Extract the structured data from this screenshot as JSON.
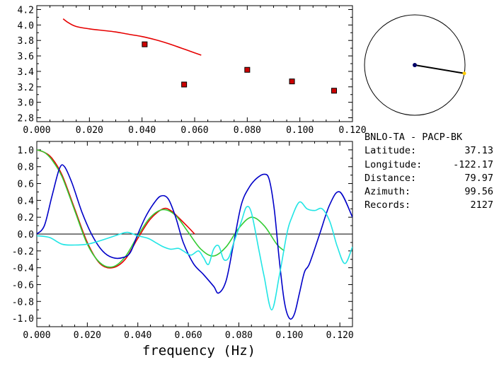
{
  "station_header": "BNLO-TA - PACP-BK",
  "station_info": [
    {
      "label": "Latitude:",
      "value": "37.13"
    },
    {
      "label": "Longitude:",
      "value": "-122.17"
    },
    {
      "label": "Distance:",
      "value": "79.97"
    },
    {
      "label": "Azimuth:",
      "value": "99.56"
    },
    {
      "label": "Records:",
      "value": "2127"
    }
  ],
  "azimuth_deg": 99.56,
  "colors": {
    "red": "#e60000",
    "blue": "#0000c8",
    "green": "#33cc33",
    "cyan": "#22e5e5",
    "marker": "#cc0000",
    "station": "#000066",
    "azimuth_end": "#ffcc00"
  },
  "chart_data": [
    {
      "type": "scatter",
      "title": "",
      "xlabel": "",
      "ylabel": "",
      "xlim": [
        0.0,
        0.12
      ],
      "ylim": [
        2.75,
        4.25
      ],
      "xticks": [
        "0.000",
        "0.020",
        "0.040",
        "0.060",
        "0.080",
        "0.100",
        "0.120"
      ],
      "yticks": [
        "2.8",
        "3.0",
        "3.2",
        "3.4",
        "3.6",
        "3.8",
        "4.0",
        "4.2"
      ],
      "series": [
        {
          "type": "line",
          "color": "red",
          "x": [
            0.01,
            0.012,
            0.015,
            0.02,
            0.025,
            0.03,
            0.035,
            0.04,
            0.045,
            0.05,
            0.055,
            0.06,
            0.0625
          ],
          "y": [
            4.08,
            4.03,
            3.98,
            3.95,
            3.93,
            3.91,
            3.88,
            3.85,
            3.81,
            3.76,
            3.7,
            3.64,
            3.61
          ]
        },
        {
          "type": "points",
          "color": "marker",
          "x": [
            0.041,
            0.056,
            0.08,
            0.097,
            0.113
          ],
          "y": [
            3.75,
            3.23,
            3.42,
            3.27,
            3.15
          ]
        }
      ]
    },
    {
      "type": "line",
      "title": "",
      "xlabel": "frequency (Hz)",
      "ylabel": "",
      "xlim": [
        0.0,
        0.125
      ],
      "ylim": [
        -1.1,
        1.1
      ],
      "xticks": [
        "0.000",
        "0.020",
        "0.040",
        "0.060",
        "0.080",
        "0.100",
        "0.120"
      ],
      "yticks": [
        "-1.0",
        "-0.8",
        "-0.6",
        "-0.4",
        "-0.2",
        "0.0",
        "0.2",
        "0.4",
        "0.6",
        "0.8",
        "1.0"
      ],
      "series": [
        {
          "color": "red",
          "x": [
            0.0,
            0.003,
            0.006,
            0.01,
            0.015,
            0.02,
            0.025,
            0.03,
            0.035,
            0.04,
            0.045,
            0.05,
            0.053,
            0.056,
            0.06,
            0.0625
          ],
          "y": [
            1.0,
            0.97,
            0.9,
            0.7,
            0.3,
            -0.1,
            -0.35,
            -0.4,
            -0.3,
            -0.05,
            0.18,
            0.3,
            0.28,
            0.2,
            0.08,
            0.0
          ]
        },
        {
          "color": "green",
          "x": [
            0.0,
            0.003,
            0.006,
            0.01,
            0.015,
            0.02,
            0.025,
            0.03,
            0.035,
            0.04,
            0.045,
            0.05,
            0.055,
            0.06,
            0.065,
            0.07,
            0.075,
            0.08,
            0.085,
            0.09,
            0.095,
            0.098
          ],
          "y": [
            1.0,
            0.97,
            0.88,
            0.68,
            0.28,
            -0.12,
            -0.34,
            -0.39,
            -0.27,
            -0.02,
            0.2,
            0.29,
            0.22,
            0.02,
            -0.18,
            -0.26,
            -0.15,
            0.07,
            0.2,
            0.1,
            -0.12,
            -0.2
          ]
        },
        {
          "color": "blue",
          "x": [
            0.0,
            0.003,
            0.006,
            0.009,
            0.011,
            0.014,
            0.018,
            0.022,
            0.026,
            0.03,
            0.034,
            0.037,
            0.04,
            0.043,
            0.046,
            0.049,
            0.052,
            0.055,
            0.058,
            0.062,
            0.066,
            0.07,
            0.072,
            0.075,
            0.078,
            0.081,
            0.084,
            0.087,
            0.09,
            0.092,
            0.094,
            0.096,
            0.098,
            0.1,
            0.102,
            0.104,
            0.106,
            0.108,
            0.112,
            0.116,
            0.12,
            0.125
          ],
          "y": [
            0.0,
            0.1,
            0.45,
            0.78,
            0.8,
            0.6,
            0.25,
            -0.02,
            -0.2,
            -0.28,
            -0.28,
            -0.22,
            0.0,
            0.2,
            0.35,
            0.45,
            0.42,
            0.2,
            -0.1,
            -0.35,
            -0.48,
            -0.62,
            -0.7,
            -0.55,
            -0.1,
            0.35,
            0.55,
            0.66,
            0.71,
            0.65,
            0.3,
            -0.3,
            -0.8,
            -1.0,
            -0.95,
            -0.7,
            -0.45,
            -0.35,
            0.0,
            0.35,
            0.5,
            0.2
          ]
        },
        {
          "color": "cyan",
          "x": [
            0.0,
            0.005,
            0.01,
            0.015,
            0.02,
            0.025,
            0.03,
            0.033,
            0.036,
            0.04,
            0.044,
            0.047,
            0.05,
            0.053,
            0.056,
            0.058,
            0.061,
            0.064,
            0.066,
            0.068,
            0.07,
            0.072,
            0.074,
            0.076,
            0.078,
            0.081,
            0.083,
            0.085,
            0.088,
            0.09,
            0.093,
            0.096,
            0.099,
            0.101,
            0.104,
            0.107,
            0.11,
            0.113,
            0.116,
            0.119,
            0.122,
            0.125
          ],
          "y": [
            -0.02,
            -0.04,
            -0.12,
            -0.13,
            -0.12,
            -0.08,
            -0.03,
            0.0,
            0.02,
            -0.02,
            -0.05,
            -0.1,
            -0.15,
            -0.18,
            -0.17,
            -0.2,
            -0.25,
            -0.2,
            -0.28,
            -0.36,
            -0.18,
            -0.14,
            -0.3,
            -0.28,
            -0.1,
            0.15,
            0.32,
            0.25,
            -0.2,
            -0.5,
            -0.9,
            -0.5,
            0.0,
            0.2,
            0.38,
            0.3,
            0.28,
            0.3,
            0.15,
            -0.15,
            -0.35,
            -0.15
          ]
        }
      ]
    }
  ]
}
